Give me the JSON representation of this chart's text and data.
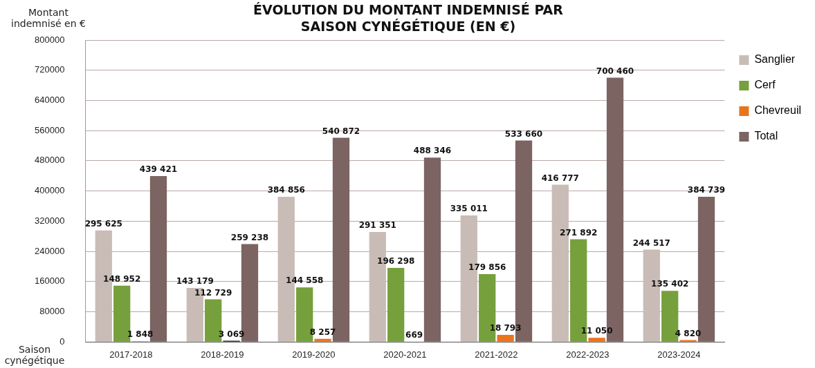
{
  "chart_data": {
    "type": "bar",
    "title": "ÉVOLUTION DU MONTANT INDEMNISÉ PAR SAISON CYNÉGÉTIQUE (EN €)",
    "ylabel": "Montant indemnisé en €",
    "xlabel": "Saison cynégétique",
    "categories": [
      "2017-2018",
      "2018-2019",
      "2019-2020",
      "2020-2021",
      "2021-2022",
      "2022-2023",
      "2023-2024"
    ],
    "series": [
      {
        "name": "Sanglier",
        "color": "#c9bcb7",
        "values": [
          295625,
          143179,
          384856,
          291351,
          335011,
          416777,
          244517
        ],
        "value_labels": [
          "295 625",
          "143 179",
          "384 856",
          "291 351",
          "335 011",
          "416 777",
          "244 517"
        ]
      },
      {
        "name": "Cerf",
        "color": "#76a03c",
        "values": [
          148952,
          112729,
          144558,
          196298,
          179856,
          271892,
          135402
        ],
        "value_labels": [
          "148 952",
          "112 729",
          "144 558",
          "196 298",
          "179 856",
          "271 892",
          "135 402"
        ]
      },
      {
        "name": "Chevreuil",
        "color": "#e8741e",
        "colors": [
          "#e8741e",
          "#1a1a1a",
          "#e8741e",
          "#e8741e",
          "#e8741e",
          "#e8741e",
          "#e8741e"
        ],
        "values": [
          1848,
          3069,
          8257,
          669,
          18793,
          11050,
          4820
        ],
        "value_labels": [
          "1 848",
          "3 069",
          "8 257",
          "669",
          "18 793",
          "11 050",
          "4 820"
        ]
      },
      {
        "name": "Total",
        "color": "#7b6462",
        "values": [
          439421,
          259238,
          540872,
          488346,
          533660,
          700460,
          384739
        ],
        "value_labels": [
          "439 421",
          "259 238",
          "540 872",
          "488 346",
          "533 660",
          "700 460",
          "384 739"
        ]
      }
    ],
    "ylim": [
      0,
      800000
    ],
    "yticks": [
      0,
      80000,
      160000,
      240000,
      320000,
      400000,
      480000,
      560000,
      640000,
      720000,
      800000
    ],
    "grid": "y",
    "legend": "right"
  }
}
